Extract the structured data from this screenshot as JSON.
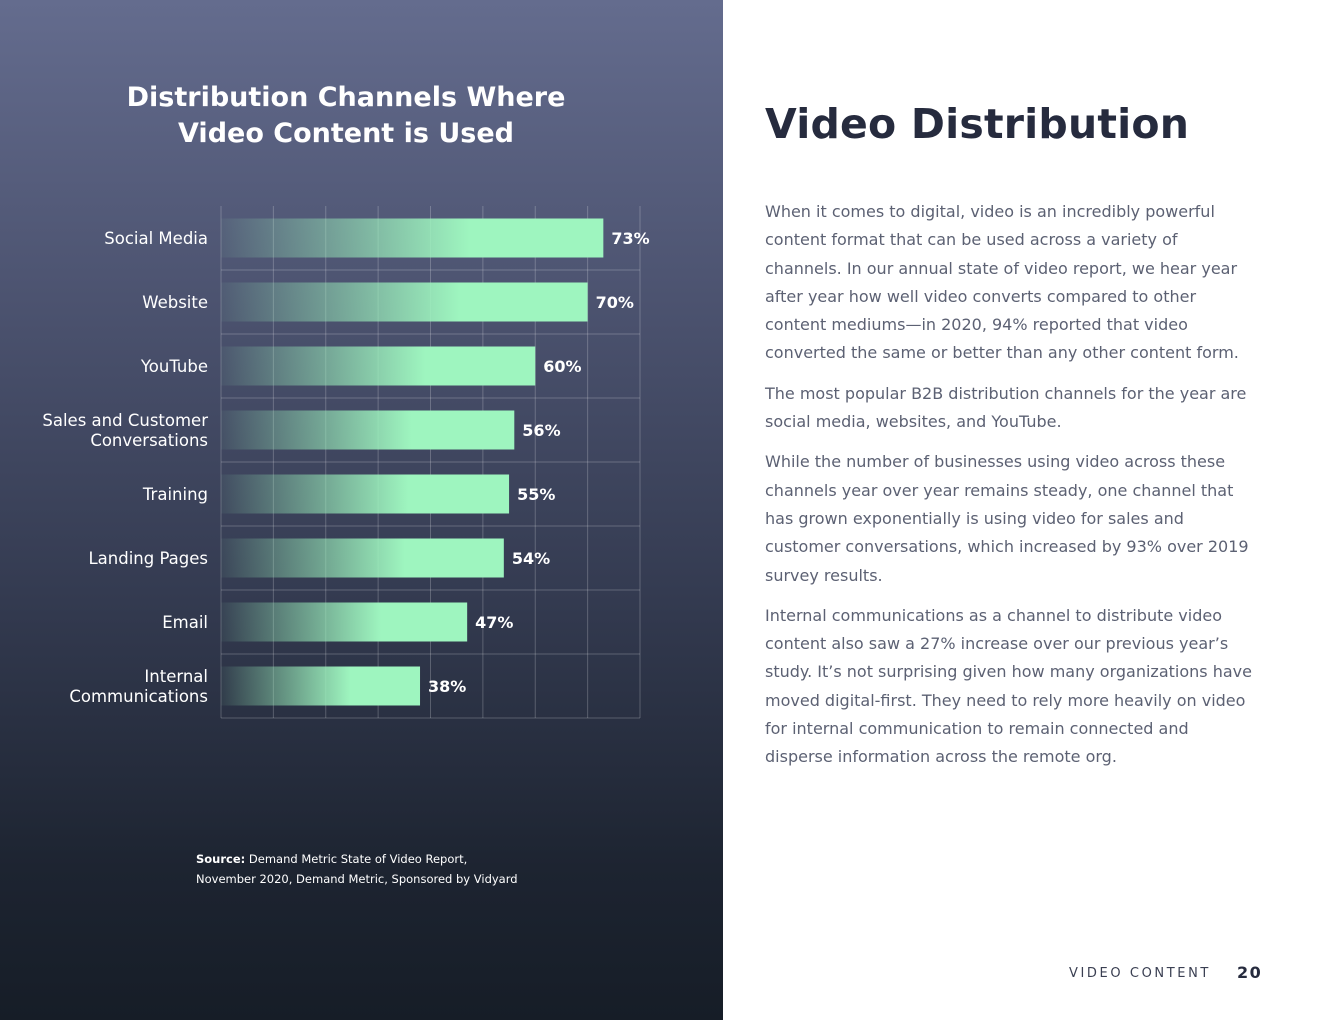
{
  "chart_data": {
    "type": "bar",
    "orientation": "horizontal",
    "title": "Distribution Channels Where Video Content is Used",
    "title_lines": [
      "Distribution Channels Where",
      "Video Content is Used"
    ],
    "categories": [
      "Social Media",
      "Website",
      "YouTube",
      "Sales and Customer Conversations",
      "Training",
      "Landing Pages",
      "Email",
      "Internal Communications"
    ],
    "category_lines": [
      [
        "Social Media"
      ],
      [
        "Website"
      ],
      [
        "YouTube"
      ],
      [
        "Sales and Customer",
        "Conversations"
      ],
      [
        "Training"
      ],
      [
        "Landing Pages"
      ],
      [
        "Email"
      ],
      [
        "Internal",
        "Communications"
      ]
    ],
    "values": [
      73,
      70,
      60,
      56,
      55,
      54,
      47,
      38
    ],
    "value_labels": [
      "73%",
      "70%",
      "60%",
      "56%",
      "55%",
      "54%",
      "47%",
      "38%"
    ],
    "xlim": [
      0,
      80
    ],
    "grid": true,
    "bar_color": "#9ef5bf"
  },
  "source": {
    "prefix": "Source:",
    "line1": "Demand Metric State of Video Report,",
    "line2": "November 2020, Demand Metric, Sponsored by Vidyard"
  },
  "article": {
    "heading": "Video Distribution",
    "paragraphs": [
      "When it comes to digital, video is an incredibly powerful content format that can be used across a variety of channels. In our annual state of video report, we hear year after year how well video converts compared to other content mediums—in 2020, 94% reported that video converted the same or better than any other content form.",
      "The most popular B2B distribution channels for the year are social media, websites, and YouTube.",
      "While the number of businesses using video across these channels year over year remains steady, one channel that has grown exponentially is using video for sales and customer conversations, which increased by 93% over 2019 survey results.",
      "Internal communications as a channel to distribute video content also saw a 27% increase over our previous year’s study. It’s not surprising given how many organizations have moved digital-first. They need to rely more heavily on video for internal communication to remain connected and disperse information across the remote org."
    ]
  },
  "footer": {
    "section": "VIDEO CONTENT",
    "page_number": "20"
  }
}
